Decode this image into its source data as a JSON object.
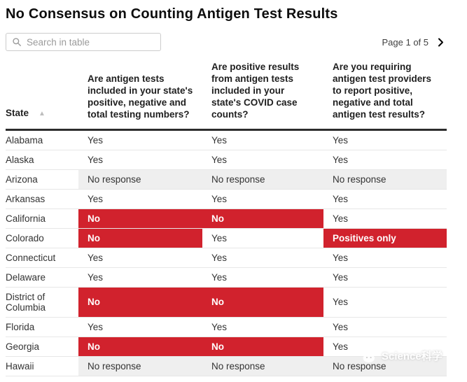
{
  "title": "No Consensus on Counting Antigen Test Results",
  "search": {
    "placeholder": "Search in table",
    "value": "",
    "icon": "search-icon"
  },
  "pagination": {
    "label": "Page 1 of 5",
    "next_icon": "chevron-right-icon"
  },
  "chart_data": {
    "type": "table",
    "title": "No Consensus on Counting Antigen Test Results",
    "sort": {
      "column": "State",
      "direction": "ascending"
    },
    "columns": [
      {
        "label": "State"
      },
      {
        "label": "Are antigen tests included in your state's positive, negative and total testing numbers?"
      },
      {
        "label": "Are positive results from antigen tests included in your state's COVID case counts?"
      },
      {
        "label": "Are you requiring antigen test providers to report positive, negative and total antigen test results?"
      }
    ],
    "rows": [
      {
        "state": "Alabama",
        "answers": [
          {
            "text": "Yes",
            "highlight": "none"
          },
          {
            "text": "Yes",
            "highlight": "none"
          },
          {
            "text": "Yes",
            "highlight": "none"
          }
        ]
      },
      {
        "state": "Alaska",
        "answers": [
          {
            "text": "Yes",
            "highlight": "none"
          },
          {
            "text": "Yes",
            "highlight": "none"
          },
          {
            "text": "Yes",
            "highlight": "none"
          }
        ]
      },
      {
        "state": "Arizona",
        "answers": [
          {
            "text": "No response",
            "highlight": "muted"
          },
          {
            "text": "No response",
            "highlight": "muted"
          },
          {
            "text": "No response",
            "highlight": "muted"
          }
        ]
      },
      {
        "state": "Arkansas",
        "answers": [
          {
            "text": "Yes",
            "highlight": "none"
          },
          {
            "text": "Yes",
            "highlight": "none"
          },
          {
            "text": "Yes",
            "highlight": "none"
          }
        ]
      },
      {
        "state": "California",
        "answers": [
          {
            "text": "No",
            "highlight": "red"
          },
          {
            "text": "No",
            "highlight": "red"
          },
          {
            "text": "Yes",
            "highlight": "none"
          }
        ]
      },
      {
        "state": "Colorado",
        "answers": [
          {
            "text": "No",
            "highlight": "red"
          },
          {
            "text": "Yes",
            "highlight": "none"
          },
          {
            "text": "Positives only",
            "highlight": "red"
          }
        ]
      },
      {
        "state": "Connecticut",
        "answers": [
          {
            "text": "Yes",
            "highlight": "none"
          },
          {
            "text": "Yes",
            "highlight": "none"
          },
          {
            "text": "Yes",
            "highlight": "none"
          }
        ]
      },
      {
        "state": "Delaware",
        "answers": [
          {
            "text": "Yes",
            "highlight": "none"
          },
          {
            "text": "Yes",
            "highlight": "none"
          },
          {
            "text": "Yes",
            "highlight": "none"
          }
        ]
      },
      {
        "state": "District of Columbia",
        "answers": [
          {
            "text": "No",
            "highlight": "red"
          },
          {
            "text": "No",
            "highlight": "red"
          },
          {
            "text": "Yes",
            "highlight": "none"
          }
        ]
      },
      {
        "state": "Florida",
        "answers": [
          {
            "text": "Yes",
            "highlight": "none"
          },
          {
            "text": "Yes",
            "highlight": "none"
          },
          {
            "text": "Yes",
            "highlight": "none"
          }
        ]
      },
      {
        "state": "Georgia",
        "answers": [
          {
            "text": "No",
            "highlight": "red"
          },
          {
            "text": "No",
            "highlight": "red"
          },
          {
            "text": "Yes",
            "highlight": "none"
          }
        ]
      },
      {
        "state": "Hawaii",
        "answers": [
          {
            "text": "No response",
            "highlight": "muted"
          },
          {
            "text": "No response",
            "highlight": "muted"
          },
          {
            "text": "No response",
            "highlight": "muted"
          }
        ]
      }
    ]
  },
  "watermark": {
    "text": "Science科学",
    "icon": "panda-logo-icon"
  },
  "colors": {
    "highlight_red": "#d1222d",
    "no_response_gray": "#efefef",
    "header_rule": "#2d2d2d",
    "row_rule": "#e7e7e7"
  }
}
